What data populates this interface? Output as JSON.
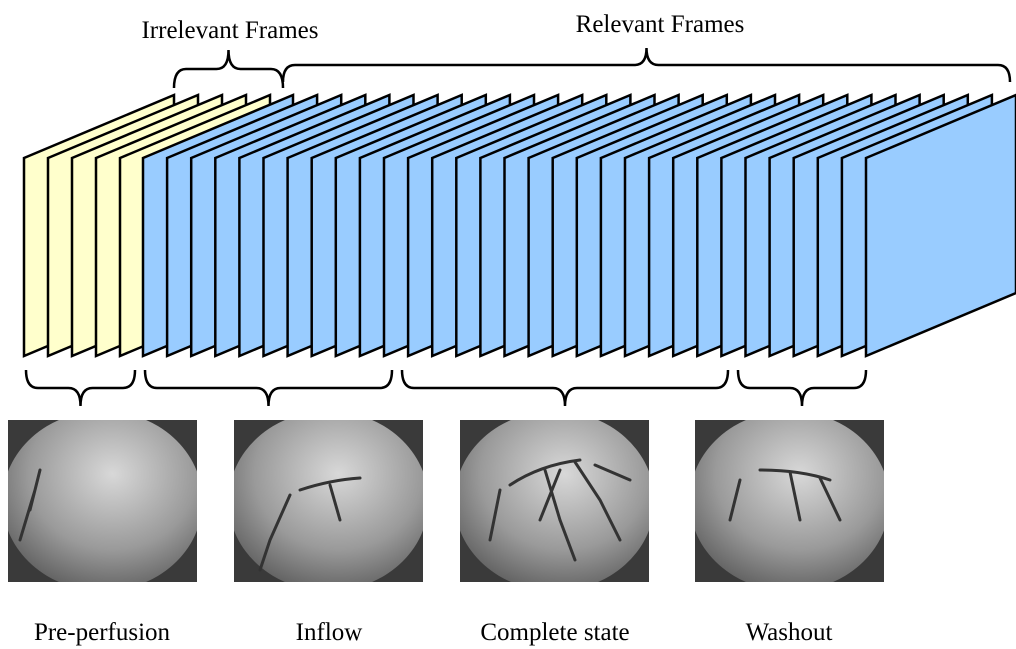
{
  "top_labels": {
    "irrelevant": "Irrelevant Frames",
    "relevant": "Relevant Frames"
  },
  "phases": [
    {
      "label": "Pre-perfusion"
    },
    {
      "label": "Inflow"
    },
    {
      "label": "Complete state"
    },
    {
      "label": "Washout"
    }
  ]
}
